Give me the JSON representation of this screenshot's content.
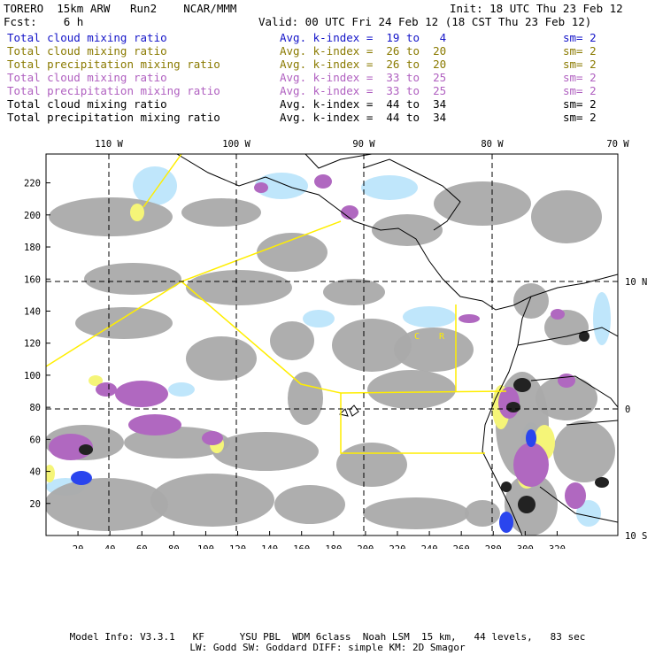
{
  "header": {
    "model": "TORERO  15km ARW   Run2    NCAR/MMM",
    "init": "Init: 18 UTC Thu 23 Feb 12",
    "fcst": "Fcst:    6 h",
    "valid": "Valid: 00 UTC Fri 24 Feb 12 (18 CST Thu 23 Feb 12)"
  },
  "legend_rows": [
    {
      "field": "Total cloud mixing ratio",
      "index": "Avg. k-index =  19 to   4",
      "sm": "sm= 2",
      "color": "#1414c8"
    },
    {
      "field": "Total cloud mixing ratio",
      "index": "Avg. k-index =  26 to  20",
      "sm": "sm= 2",
      "color": "#8a7a00"
    },
    {
      "field": "Total precipitation mixing ratio",
      "index": "Avg. k-index =  26 to  20",
      "sm": "sm= 2",
      "color": "#8a7a00"
    },
    {
      "field": "Total cloud mixing ratio",
      "index": "Avg. k-index =  33 to  25",
      "sm": "sm= 2",
      "color": "#b060c0"
    },
    {
      "field": "Total precipitation mixing ratio",
      "index": "Avg. k-index =  33 to  25",
      "sm": "sm= 2",
      "color": "#b060c0"
    },
    {
      "field": "Total cloud mixing ratio",
      "index": "Avg. k-index =  44 to  34",
      "sm": "sm= 2",
      "color": "#000000"
    },
    {
      "field": "Total precipitation mixing ratio",
      "index": "Avg. k-index =  44 to  34",
      "sm": "sm= 2",
      "color": "#000000"
    }
  ],
  "map": {
    "lon_labels": [
      "110 W",
      "100 W",
      "90 W",
      "80 W",
      "70 W"
    ],
    "lat_labels": [
      "10 N",
      "0",
      "10 S"
    ],
    "x_ticks": [
      "20",
      "40",
      "60",
      "80",
      "100",
      "120",
      "140",
      "160",
      "180",
      "200",
      "220",
      "240",
      "260",
      "280",
      "300",
      "320"
    ],
    "y_ticks": [
      "220",
      "200",
      "180",
      "160",
      "140",
      "120",
      "100",
      "80",
      "60",
      "40",
      "20"
    ],
    "region_labels": [
      "C",
      "R"
    ],
    "colors": {
      "gray": "#aaaaaa",
      "lightblue": "#bfe6fb",
      "blue": "#2a45ee",
      "purple": "#b068c0",
      "yellow": "#f5f578",
      "track": "#ffee00"
    }
  },
  "footer": {
    "line1": "Model Info: V3.3.1   KF      YSU PBL  WDM 6class  Noah LSM  15 km,   44 levels,   83 sec",
    "line2": "LW: Godd SW: Goddard DIFF: simple KM: 2D Smagor"
  }
}
